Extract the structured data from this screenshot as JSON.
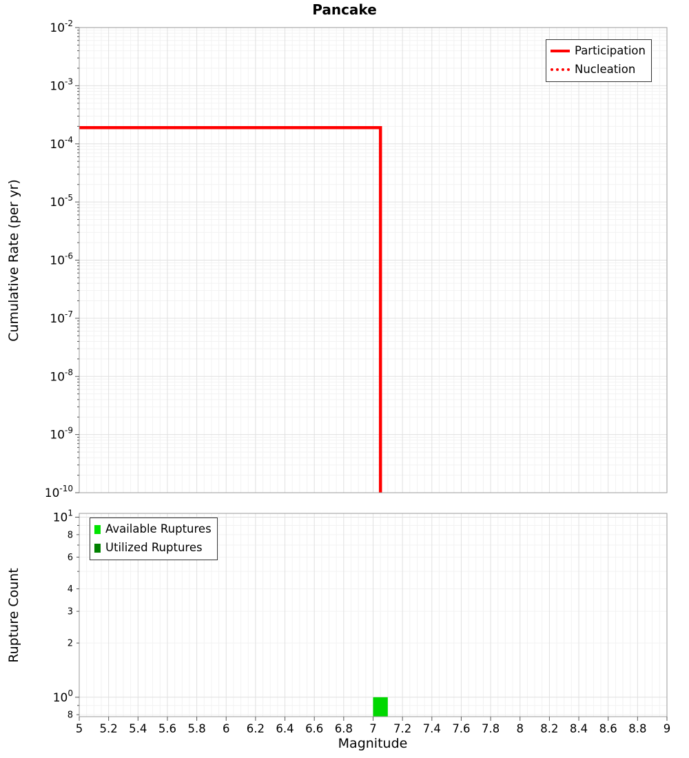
{
  "title": "Pancake",
  "chart_data": [
    {
      "type": "line",
      "title": "Pancake",
      "xlabel": "",
      "ylabel": "Cumulative Rate (per yr)",
      "xlim": [
        5,
        9
      ],
      "ylim": [
        1e-10,
        0.01
      ],
      "grid": true,
      "legend_position": "top-right",
      "y_ticks": [
        {
          "v": 0.01,
          "exp": "-2"
        },
        {
          "v": 0.001,
          "exp": "-3"
        },
        {
          "v": 0.0001,
          "exp": "-4"
        },
        {
          "v": 1e-05,
          "exp": "-5"
        },
        {
          "v": 1e-06,
          "exp": "-6"
        },
        {
          "v": 1e-07,
          "exp": "-7"
        },
        {
          "v": 1e-08,
          "exp": "-8"
        },
        {
          "v": 1e-09,
          "exp": "-9"
        },
        {
          "v": 1e-10,
          "exp": "-10"
        }
      ],
      "legend": [
        {
          "label": "Participation",
          "color": "#ff0000",
          "style": "solid"
        },
        {
          "label": "Nucleation",
          "color": "#ff0000",
          "style": "dotted"
        }
      ],
      "series": [
        {
          "name": "Participation",
          "color": "#ff0000",
          "style": "solid",
          "width": 4.5,
          "points": [
            [
              5,
              0.00019
            ],
            [
              7.05,
              0.00019
            ],
            [
              7.05,
              1e-10
            ]
          ]
        },
        {
          "name": "Nucleation",
          "color": "#ff0000",
          "style": "dotted",
          "width": 2.6,
          "points": [
            [
              5,
              0.00019
            ],
            [
              7.05,
              0.00019
            ],
            [
              7.05,
              1e-10
            ]
          ]
        }
      ]
    },
    {
      "type": "bar",
      "xlabel": "Magnitude",
      "ylabel": "Rupture Count",
      "xlim": [
        5,
        9
      ],
      "ylim": [
        0.78,
        10.5
      ],
      "legend_position": "top-left",
      "y_ticks": [
        {
          "v": 10,
          "exp": "1"
        },
        {
          "v": 1,
          "exp": "0"
        }
      ],
      "y_minor_ticks": [
        {
          "v": 8,
          "label": "8"
        },
        {
          "v": 6,
          "label": "6"
        },
        {
          "v": 4,
          "label": "4"
        },
        {
          "v": 3,
          "label": "3"
        },
        {
          "v": 2,
          "label": "2"
        },
        {
          "v": 0.8,
          "label": "8"
        }
      ],
      "x_ticks": [
        5,
        5.2,
        5.4,
        5.6,
        5.8,
        6,
        6.2,
        6.4,
        6.6,
        6.8,
        7,
        7.2,
        7.4,
        7.6,
        7.8,
        8,
        8.2,
        8.4,
        8.6,
        8.8,
        9
      ],
      "x_tick_labels": [
        "5",
        "5.2",
        "5.4",
        "5.6",
        "5.8",
        "6",
        "6.2",
        "6.4",
        "6.6",
        "6.8",
        "7",
        "7.2",
        "7.4",
        "7.6",
        "7.8",
        "8",
        "8.2",
        "8.4",
        "8.6",
        "8.8",
        "9"
      ],
      "legend": [
        {
          "label": "Available Ruptures",
          "color": "#00e400"
        },
        {
          "label": "Utilized Ruptures",
          "color": "#008000"
        }
      ],
      "bars": [
        {
          "x": 7.05,
          "width": 0.1,
          "value": 1,
          "color": "#00d800",
          "series": "Available Ruptures"
        }
      ]
    }
  ]
}
